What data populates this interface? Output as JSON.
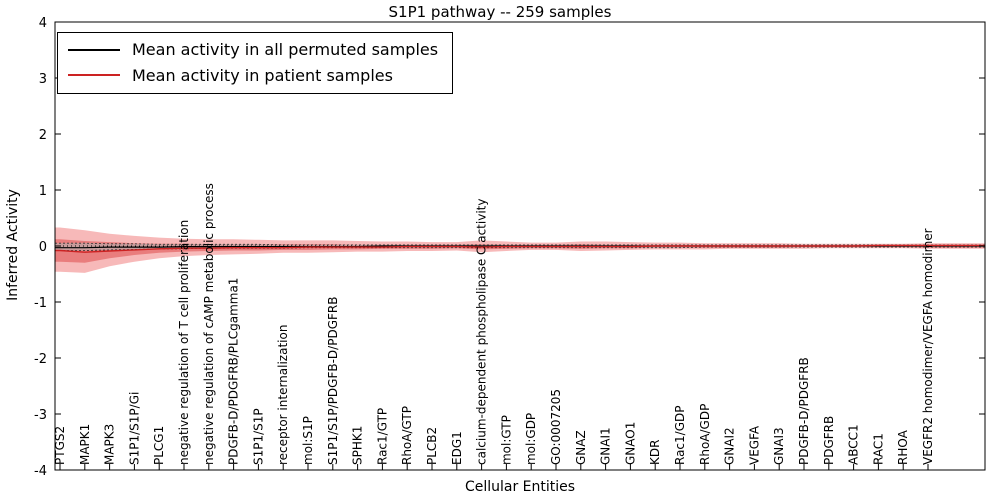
{
  "chart_data": {
    "type": "line",
    "title": "S1P1 pathway -- 259 samples",
    "xlabel": "Cellular Entities",
    "ylabel": "Inferred Activity",
    "ylim": [
      -4,
      4
    ],
    "yticks": [
      -4,
      -3,
      -2,
      -1,
      0,
      1,
      2,
      3,
      4
    ],
    "grid": false,
    "legend_position": "upper-left",
    "categories": [
      "PTGS2",
      "MAPK1",
      "MAPK3",
      "S1P1/S1P/Gi",
      "PLCG1",
      "negative regulation of T cell proliferation",
      "negative regulation of cAMP metabolic process",
      "PDGFB-D/PDGFRB/PLCgamma1",
      "S1P1/S1P",
      "receptor internalization",
      "mol:S1P",
      "S1P1/S1P/PDGFB-D/PDGFRB",
      "SPHK1",
      "Rac1/GTP",
      "RhoA/GTP",
      "PLCB2",
      "EDG1",
      "calcium-dependent phospholipase C activity",
      "mol:GTP",
      "mol:GDP",
      "GO:0007205",
      "GNAZ",
      "GNAI1",
      "GNAO1",
      "KDR",
      "Rac1/GDP",
      "RhoA/GDP",
      "GNAI2",
      "VEGFA",
      "GNAI3",
      "PDGFB-D/PDGFRB",
      "PDGFRB",
      "ABCC1",
      "RAC1",
      "RHOA",
      "VEGFR2 homodimer/VEGFA homodimer"
    ],
    "series": [
      {
        "name": "Mean activity in all permuted samples",
        "color": "#000000",
        "width": 1.2,
        "values": [
          -0.03,
          -0.03,
          -0.02,
          -0.02,
          -0.02,
          -0.01,
          -0.01,
          -0.01,
          -0.01,
          -0.01,
          -0.01,
          -0.01,
          -0.01,
          0,
          0,
          0,
          0,
          0,
          0,
          0,
          0,
          0,
          0,
          0,
          0,
          0,
          0,
          0,
          0,
          0,
          0,
          0,
          0,
          0,
          0,
          0
        ]
      },
      {
        "name": "Mean activity in patient samples",
        "color": "#cc2222",
        "width": 1.4,
        "values": [
          -0.08,
          -0.11,
          -0.09,
          -0.07,
          -0.05,
          -0.04,
          -0.04,
          -0.03,
          -0.03,
          -0.03,
          -0.02,
          -0.02,
          -0.02,
          -0.02,
          -0.01,
          -0.01,
          -0.01,
          -0.02,
          -0.01,
          -0.01,
          -0.01,
          -0.01,
          -0.01,
          -0.01,
          0,
          0,
          0,
          0,
          0,
          0,
          0,
          0,
          0,
          0.01,
          0.01,
          0.01
        ]
      }
    ],
    "bands": [
      {
        "name": "patient-ci-outer",
        "color": "#f08080",
        "opacity": 0.55,
        "dotted_edges": false,
        "upper": [
          0.33,
          0.28,
          0.22,
          0.18,
          0.15,
          0.13,
          0.12,
          0.12,
          0.11,
          0.1,
          0.1,
          0.1,
          0.09,
          0.08,
          0.08,
          0.07,
          0.07,
          0.1,
          0.08,
          0.06,
          0.06,
          0.08,
          0.08,
          0.07,
          0.06,
          0.06,
          0.05,
          0.05,
          0.05,
          0.05,
          0.04,
          0.04,
          0.04,
          0.04,
          0.04,
          0.05
        ],
        "lower": [
          -0.46,
          -0.48,
          -0.36,
          -0.28,
          -0.22,
          -0.18,
          -0.16,
          -0.15,
          -0.14,
          -0.12,
          -0.12,
          -0.11,
          -0.1,
          -0.1,
          -0.09,
          -0.09,
          -0.08,
          -0.11,
          -0.09,
          -0.07,
          -0.07,
          -0.09,
          -0.08,
          -0.07,
          -0.06,
          -0.06,
          -0.06,
          -0.05,
          -0.05,
          -0.05,
          -0.05,
          -0.04,
          -0.04,
          -0.04,
          -0.04,
          -0.05
        ]
      },
      {
        "name": "patient-ci-inner",
        "color": "#e05555",
        "opacity": 0.6,
        "dotted_edges": false,
        "upper": [
          0.12,
          0.09,
          0.07,
          0.05,
          0.04,
          0.04,
          0.03,
          0.03,
          0.03,
          0.03,
          0.03,
          0.03,
          0.02,
          0.02,
          0.02,
          0.02,
          0.02,
          0.03,
          0.02,
          0.02,
          0.02,
          0.03,
          0.02,
          0.02,
          0.02,
          0.02,
          0.02,
          0.01,
          0.01,
          0.01,
          0.01,
          0.01,
          0.01,
          0.01,
          0.01,
          0.02
        ],
        "lower": [
          -0.28,
          -0.3,
          -0.22,
          -0.16,
          -0.12,
          -0.1,
          -0.09,
          -0.08,
          -0.08,
          -0.07,
          -0.07,
          -0.06,
          -0.06,
          -0.05,
          -0.05,
          -0.05,
          -0.04,
          -0.06,
          -0.05,
          -0.04,
          -0.04,
          -0.05,
          -0.04,
          -0.04,
          -0.03,
          -0.03,
          -0.03,
          -0.03,
          -0.03,
          -0.03,
          -0.02,
          -0.02,
          -0.02,
          -0.02,
          -0.02,
          -0.03
        ]
      },
      {
        "name": "permuted-ci",
        "color": "#b0b0b0",
        "opacity": 0.6,
        "dotted_edges": true,
        "upper": [
          0.05,
          0.05,
          0.04,
          0.04,
          0.03,
          0.03,
          0.03,
          0.03,
          0.03,
          0.02,
          0.02,
          0.02,
          0.02,
          0.02,
          0.02,
          0.02,
          0.02,
          0.02,
          0.02,
          0.02,
          0.02,
          0.02,
          0.02,
          0.02,
          0.02,
          0.02,
          0.02,
          0.02,
          0.02,
          0.02,
          0.02,
          0.02,
          0.02,
          0.02,
          0.02,
          0.02
        ],
        "lower": [
          -0.08,
          -0.08,
          -0.07,
          -0.06,
          -0.05,
          -0.05,
          -0.04,
          -0.04,
          -0.04,
          -0.04,
          -0.03,
          -0.03,
          -0.03,
          -0.03,
          -0.03,
          -0.03,
          -0.03,
          -0.03,
          -0.03,
          -0.03,
          -0.03,
          -0.03,
          -0.03,
          -0.03,
          -0.03,
          -0.03,
          -0.02,
          -0.02,
          -0.02,
          -0.02,
          -0.02,
          -0.02,
          -0.02,
          -0.02,
          -0.02,
          -0.02
        ]
      }
    ],
    "zero_line": {
      "value": 0,
      "color": "#000000",
      "style": "dotted"
    },
    "colors": {
      "axis": "#000000",
      "background": "#ffffff"
    }
  }
}
